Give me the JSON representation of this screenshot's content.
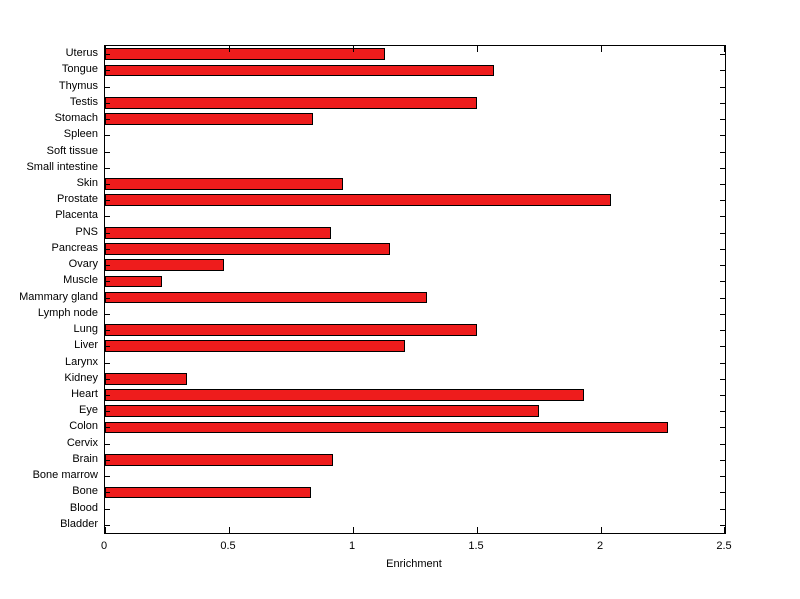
{
  "figure": {
    "background": "#ffffff",
    "axis_color": "#000000"
  },
  "chart_data": {
    "type": "bar",
    "orientation": "horizontal",
    "title": "",
    "xlabel": "Enrichment",
    "ylabel": "",
    "xlim": [
      0,
      2.5
    ],
    "xticks": [
      0,
      0.5,
      1,
      1.5,
      2,
      2.5
    ],
    "xtick_labels": [
      "0",
      "0.5",
      "1",
      "1.5",
      "2",
      "2.5"
    ],
    "grid": false,
    "legend": null,
    "bar_fill": "#ee1c1c",
    "bar_edge": "#000000",
    "categories_top_to_bottom": [
      "Uterus",
      "Tongue",
      "Thymus",
      "Testis",
      "Stomach",
      "Spleen",
      "Soft tissue",
      "Small intestine",
      "Skin",
      "Prostate",
      "Placenta",
      "PNS",
      "Pancreas",
      "Ovary",
      "Muscle",
      "Mammary gland",
      "Lymph node",
      "Lung",
      "Liver",
      "Larynx",
      "Kidney",
      "Heart",
      "Eye",
      "Colon",
      "Cervix",
      "Brain",
      "Bone marrow",
      "Bone",
      "Blood",
      "Bladder"
    ],
    "values_top_to_bottom": [
      1.13,
      1.57,
      0,
      1.5,
      0.84,
      0,
      0,
      0,
      0.96,
      2.04,
      0,
      0.91,
      1.15,
      0.48,
      0.23,
      1.3,
      0,
      1.5,
      1.21,
      0,
      0.33,
      1.93,
      1.75,
      2.27,
      0,
      0.92,
      0,
      0.83,
      0,
      0
    ]
  }
}
